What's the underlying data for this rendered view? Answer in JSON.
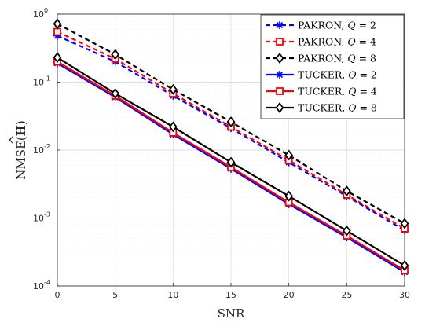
{
  "chart_data": {
    "type": "line",
    "title": "",
    "xlabel": "SNR",
    "ylabel_main": "NMSE(",
    "ylabel_symbol": "H",
    "ylabel_hat": "^",
    "ylabel_close": ")",
    "xlim": [
      0,
      30
    ],
    "ylim": [
      0.0001,
      1
    ],
    "yscale": "log",
    "grid": true,
    "legend_position": "top-right",
    "x": [
      0,
      5,
      10,
      15,
      20,
      25,
      30
    ],
    "xticks": [
      "0",
      "5",
      "10",
      "15",
      "20",
      "25",
      "30"
    ],
    "yticks": [
      {
        "base": "10",
        "exp": "-4",
        "value": 0.0001
      },
      {
        "base": "10",
        "exp": "-3",
        "value": 0.001
      },
      {
        "base": "10",
        "exp": "-2",
        "value": 0.01
      },
      {
        "base": "10",
        "exp": "-1",
        "value": 0.1
      },
      {
        "base": "10",
        "exp": "0",
        "value": 1
      }
    ],
    "series": [
      {
        "name": "PAKRON, ",
        "q": "Q",
        "rest": " = 2",
        "color": "#0000ff",
        "dash": "dashed",
        "marker": "asterisk",
        "values": [
          0.48,
          0.2,
          0.063,
          0.021,
          0.0066,
          0.0021,
          0.00066
        ]
      },
      {
        "name": "PAKRON, ",
        "q": "Q",
        "rest": " = 4",
        "color": "#ff0000",
        "dash": "dashed",
        "marker": "square",
        "values": [
          0.55,
          0.22,
          0.068,
          0.022,
          0.0071,
          0.0022,
          0.0007
        ]
      },
      {
        "name": "PAKRON, ",
        "q": "Q",
        "rest": " = 8",
        "color": "#000000",
        "dash": "dashed",
        "marker": "diamond",
        "values": [
          0.72,
          0.255,
          0.078,
          0.026,
          0.0084,
          0.0025,
          0.00083
        ]
      },
      {
        "name": "TUCKER, ",
        "q": "Q",
        "rest": " = 2",
        "color": "#0000ff",
        "dash": "solid",
        "marker": "asterisk",
        "values": [
          0.19,
          0.06,
          0.017,
          0.0053,
          0.0016,
          0.00052,
          0.00016
        ]
      },
      {
        "name": "TUCKER, ",
        "q": "Q",
        "rest": " = 4",
        "color": "#ff0000",
        "dash": "solid",
        "marker": "square",
        "values": [
          0.2,
          0.063,
          0.018,
          0.0056,
          0.0017,
          0.00055,
          0.00017
        ]
      },
      {
        "name": "TUCKER, ",
        "q": "Q",
        "rest": " = 8",
        "color": "#000000",
        "dash": "solid",
        "marker": "diamond",
        "values": [
          0.23,
          0.068,
          0.022,
          0.0066,
          0.0021,
          0.00065,
          0.0002
        ]
      }
    ]
  }
}
